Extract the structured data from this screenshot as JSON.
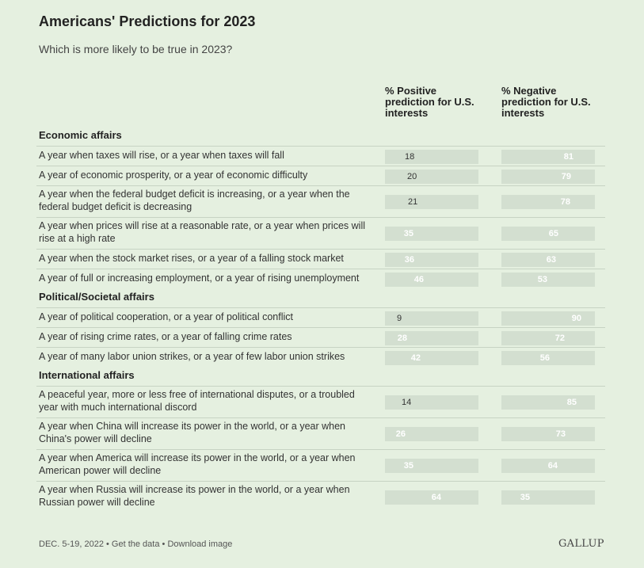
{
  "title": "Americans' Predictions for 2023",
  "subtitle": "Which is more likely to be true in 2023?",
  "columns": {
    "positive": "% Positive prediction for U.S. interests",
    "negative": "% Negative prediction for U.S. interests"
  },
  "footer": {
    "date": "DEC. 5-19, 2022",
    "get_data": "Get the data",
    "download": "Download image",
    "separator": "•",
    "brand": "GALLUP"
  },
  "colors": {
    "positive": "#0b5849",
    "negative": "#e06b34",
    "track": "#d3dfd0",
    "background": "#e5f0e0"
  },
  "chart_data": {
    "type": "bar",
    "orientation": "horizontal",
    "xlim": [
      0,
      100
    ],
    "groups": [
      {
        "name": "Economic affairs",
        "items": [
          {
            "label": "A year when taxes will rise, or a year when taxes will fall",
            "positive": 18,
            "negative": 81
          },
          {
            "label": "A year of economic prosperity, or a year of economic difficulty",
            "positive": 20,
            "negative": 79
          },
          {
            "label": "A year when the federal budget deficit is increasing, or a year when the federal budget deficit is decreasing",
            "positive": 21,
            "negative": 78
          },
          {
            "label": "A year when prices will rise at a reasonable rate, or a year when prices will rise at a high rate",
            "positive": 35,
            "negative": 65
          },
          {
            "label": "A year when the stock market rises, or a year of a falling stock market",
            "positive": 36,
            "negative": 63
          },
          {
            "label": "A year of full or increasing employment, or a year of rising unemployment",
            "positive": 46,
            "negative": 53
          }
        ]
      },
      {
        "name": "Political/Societal affairs",
        "items": [
          {
            "label": "A year of political cooperation, or a year of political conflict",
            "positive": 9,
            "negative": 90
          },
          {
            "label": "A year of rising crime rates, or a year of falling crime rates",
            "positive": 28,
            "negative": 72
          },
          {
            "label": "A year of many labor union strikes, or a year of few labor union strikes",
            "positive": 42,
            "negative": 56
          }
        ]
      },
      {
        "name": "International affairs",
        "items": [
          {
            "label": "A peaceful year, more or less free of international disputes, or a troubled year with much international discord",
            "positive": 14,
            "negative": 85
          },
          {
            "label": "A year when China will increase its power in the world, or a year when China's power will decline",
            "positive": 26,
            "negative": 73
          },
          {
            "label": "A year when America will increase its power in the world, or a year when American power will decline",
            "positive": 35,
            "negative": 64
          },
          {
            "label": "A year when Russia will increase its power in the world, or a year when Russian power will decline",
            "positive": 64,
            "negative": 35
          }
        ]
      }
    ]
  }
}
